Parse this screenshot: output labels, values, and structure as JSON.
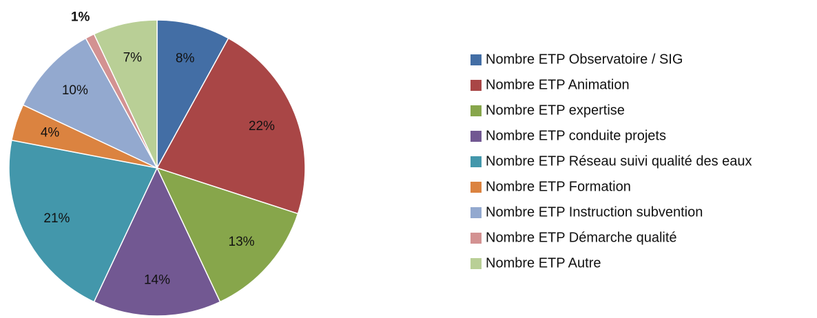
{
  "chart_data": {
    "type": "pie",
    "categories": [
      "Nombre ETP Observatoire / SIG",
      "Nombre ETP Animation",
      "Nombre ETP expertise",
      "Nombre ETP conduite projets",
      "Nombre ETP Réseau suivi qualité des eaux",
      "Nombre ETP Formation",
      "Nombre ETP Instruction subvention",
      "Nombre ETP Démarche qualité",
      "Nombre ETP Autre"
    ],
    "values": [
      8,
      22,
      13,
      14,
      21,
      4,
      10,
      1,
      7
    ],
    "value_labels": [
      "8%",
      "22%",
      "13%",
      "14%",
      "21%",
      "4%",
      "10%",
      "1%",
      "7%"
    ],
    "colors": [
      "#436ea5",
      "#a94646",
      "#87a64b",
      "#725892",
      "#4397ab",
      "#db8340",
      "#93a9cf",
      "#d39292",
      "#b9cf96"
    ],
    "legend": "right"
  }
}
